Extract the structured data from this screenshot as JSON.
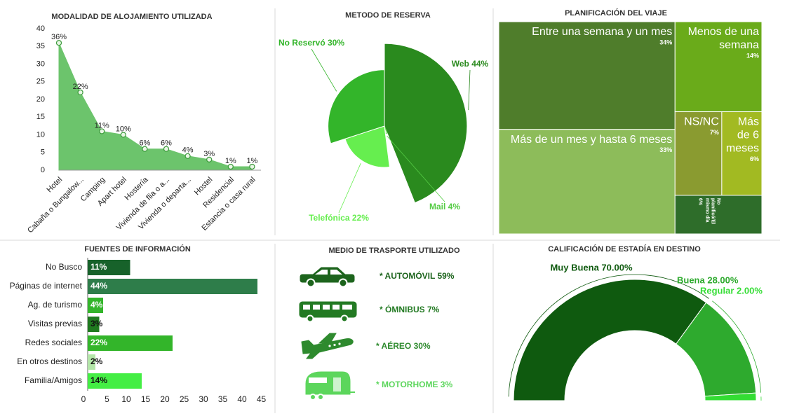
{
  "chart_data": [
    {
      "type": "area",
      "title": "MODALIDAD DE ALOJAMIENTO UTILIZADA",
      "categories": [
        "Hotel",
        "Cabaña o Bungalow...",
        "Camping",
        "Apart hotel",
        "Hostería",
        "Vivienda de flia o a...",
        "Vivienda o departa...",
        "Hostel",
        "Residencial",
        "Estancia o casa rural"
      ],
      "values": [
        36,
        22,
        11,
        10,
        6,
        6,
        4,
        3,
        1,
        1
      ],
      "value_labels": [
        "36%",
        "22%",
        "11%",
        "10%",
        "6%",
        "6%",
        "4%",
        "3%",
        "1%",
        "1%"
      ],
      "color": "#6cc46c",
      "ylim": [
        0,
        40
      ],
      "yticks": [
        0,
        5,
        10,
        15,
        20,
        25,
        30,
        35,
        40
      ]
    },
    {
      "type": "pie",
      "title": "METODO DE RESERVA",
      "values": [
        44,
        4,
        22,
        30
      ],
      "value_labels": [
        "Web 44%",
        "Mail 4%",
        "Telefónica 22%",
        "No Reservó 30%"
      ],
      "colors": [
        "#2a8a1e",
        "#e4f7df",
        "#66ee4f",
        "#33b52a"
      ]
    },
    {
      "type": "treemap",
      "title": "PLANIFICACIÓN DEL VIAJE",
      "categories": [
        "Entre una semana y un mes",
        "Menos de una semana",
        "Más de un mes y hasta 6 meses",
        "NS/NC",
        "Más de 6 meses",
        "No planificó/El mismo día"
      ],
      "values": [
        34,
        14,
        33,
        7,
        6,
        6
      ],
      "value_labels": [
        "34%",
        "14%",
        "33%",
        "7%",
        "6%",
        "6%"
      ],
      "colors": [
        "#4f7d2b",
        "#6aab1a",
        "#8dbc5a",
        "#8a9b30",
        "#a2ba22",
        "#2e6d2a"
      ]
    },
    {
      "type": "hbar",
      "title": "FUENTES DE INFORMACIÓN",
      "categories": [
        "No Busco",
        "Páginas de internet",
        "Ag. de turismo",
        "Visitas previas",
        "Redes sociales",
        "En otros destinos",
        "Familia/Amigos"
      ],
      "values": [
        11,
        44,
        4,
        3,
        22,
        2,
        14
      ],
      "value_labels": [
        "11%",
        "44%",
        "4%",
        "3%",
        "22%",
        "2%",
        "14%"
      ],
      "colors": [
        "#17622a",
        "#2e7d4a",
        "#33b52a",
        "#1f7a1f",
        "#33b52a",
        "#b3e6a8",
        "#44ee44"
      ],
      "xlim": [
        0,
        46
      ],
      "xticks": [
        0,
        5,
        10,
        15,
        20,
        25,
        30,
        35,
        40,
        45
      ]
    },
    {
      "type": "pictogram",
      "title": "MEDIO DE TRASPORTE UTILIZADO",
      "values": [
        59,
        7,
        30,
        3
      ],
      "value_labels": [
        "* AUTOMÓVIL 59%",
        "* ÓMNIBUS 7%",
        "* AÉREO 30%",
        "* MOTORHOME 3%"
      ],
      "colors": [
        "#1d641d",
        "#237a23",
        "#2e8a2e",
        "#5cd65c"
      ]
    },
    {
      "type": "gauge",
      "title": "CALIFICACIÓN DE ESTADÍA EN DESTINO",
      "values": [
        70,
        28,
        2
      ],
      "value_labels": [
        "Muy Buena 70.00%",
        "Buena 28.00%",
        "Regular 2.00%"
      ],
      "colors": [
        "#0f5a0f",
        "#2eaa2e",
        "#33dd33"
      ]
    }
  ]
}
